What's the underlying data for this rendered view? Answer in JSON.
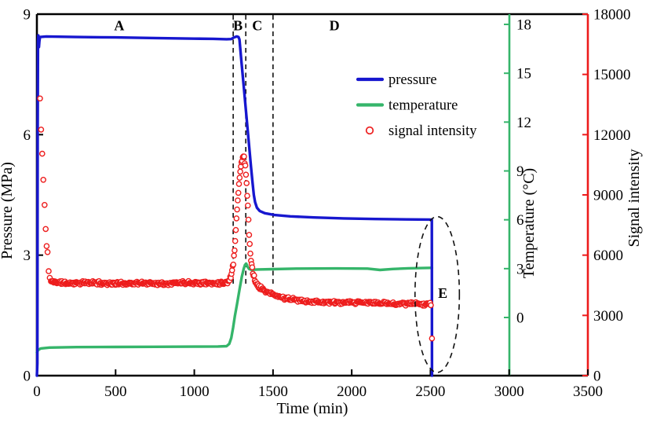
{
  "chart_data": {
    "type": "line",
    "title": "",
    "xlabel": "Time (min)",
    "x_axis": {
      "range": [
        0,
        3500
      ],
      "ticks": [
        0,
        500,
        1000,
        1500,
        2000,
        2500,
        3000,
        3500
      ]
    },
    "axes": {
      "pressure": {
        "label": "Pressure (MPa)",
        "range": [
          0,
          9
        ],
        "ticks": [
          0,
          3,
          6,
          9
        ],
        "side": "left",
        "axis_color": "#000000"
      },
      "temperature": {
        "label": "Temperature (°C)",
        "range_ticks": [
          0,
          18
        ],
        "ticks": [
          0,
          3,
          6,
          9,
          12,
          15,
          18
        ],
        "side": "inner-right-at-x-3000",
        "axis_color": "#35b56a"
      },
      "signal": {
        "label": "Signal intensity",
        "range": [
          0,
          18000
        ],
        "ticks": [
          0,
          3000,
          6000,
          9000,
          12000,
          15000,
          18000
        ],
        "side": "right",
        "axis_color": "#ed1c1c"
      }
    },
    "grid": false,
    "legend_position": "upper-middle-right-inside",
    "series": [
      {
        "name": "pressure",
        "kind": "line",
        "color": "#1717cf",
        "axis": "pressure",
        "points": [
          [
            0,
            0
          ],
          [
            3,
            0.3
          ],
          [
            5,
            6.2
          ],
          [
            7,
            8.32
          ],
          [
            9,
            8.47
          ],
          [
            11,
            8.36
          ],
          [
            13,
            8.18
          ],
          [
            16,
            8.33
          ],
          [
            20,
            8.43
          ],
          [
            60,
            8.445
          ],
          [
            250,
            8.43
          ],
          [
            500,
            8.42
          ],
          [
            750,
            8.405
          ],
          [
            1000,
            8.39
          ],
          [
            1120,
            8.385
          ],
          [
            1205,
            8.375
          ],
          [
            1235,
            8.38
          ],
          [
            1252,
            8.42
          ],
          [
            1270,
            8.445
          ],
          [
            1281,
            8.43
          ],
          [
            1287,
            8.37
          ],
          [
            1300,
            7.8
          ],
          [
            1315,
            7.15
          ],
          [
            1330,
            6.5
          ],
          [
            1345,
            5.85
          ],
          [
            1360,
            5.2
          ],
          [
            1370,
            4.8
          ],
          [
            1378,
            4.5
          ],
          [
            1386,
            4.32
          ],
          [
            1398,
            4.18
          ],
          [
            1415,
            4.1
          ],
          [
            1448,
            4.045
          ],
          [
            1510,
            4.0
          ],
          [
            1610,
            3.965
          ],
          [
            1760,
            3.938
          ],
          [
            1950,
            3.915
          ],
          [
            2150,
            3.9
          ],
          [
            2350,
            3.89
          ],
          [
            2500,
            3.885
          ],
          [
            2509,
            3.882
          ],
          [
            2510,
            0
          ]
        ]
      },
      {
        "name": "temperature",
        "kind": "line",
        "color": "#35b56a",
        "axis": "temperature",
        "points": [
          [
            0,
            -2.15
          ],
          [
            8,
            -2.0
          ],
          [
            25,
            -1.9
          ],
          [
            80,
            -1.85
          ],
          [
            250,
            -1.82
          ],
          [
            500,
            -1.81
          ],
          [
            750,
            -1.8
          ],
          [
            1000,
            -1.79
          ],
          [
            1150,
            -1.78
          ],
          [
            1205,
            -1.76
          ],
          [
            1222,
            -1.62
          ],
          [
            1235,
            -1.25
          ],
          [
            1247,
            -0.6
          ],
          [
            1258,
            0.1
          ],
          [
            1272,
            0.85
          ],
          [
            1288,
            1.75
          ],
          [
            1302,
            2.5
          ],
          [
            1314,
            3.0
          ],
          [
            1322,
            3.24
          ],
          [
            1330,
            3.3
          ],
          [
            1338,
            3.12
          ],
          [
            1348,
            2.98
          ],
          [
            1362,
            2.93
          ],
          [
            1400,
            2.95
          ],
          [
            1500,
            2.97
          ],
          [
            1650,
            3.0
          ],
          [
            1900,
            3.01
          ],
          [
            2100,
            3.0
          ],
          [
            2180,
            2.92
          ],
          [
            2260,
            2.98
          ],
          [
            2360,
            3.02
          ],
          [
            2510,
            3.05
          ]
        ]
      },
      {
        "name": "signal intensity",
        "kind": "scatter",
        "color": "#ed1c1c",
        "axis": "signal",
        "early_points": [
          [
            20,
            13800
          ],
          [
            27,
            12250
          ],
          [
            34,
            11050
          ],
          [
            41,
            9750
          ],
          [
            49,
            8500
          ],
          [
            56,
            7300
          ],
          [
            62,
            6450
          ],
          [
            68,
            6150
          ],
          [
            75,
            5200
          ],
          [
            82,
            4870
          ],
          [
            89,
            4700
          ]
        ],
        "anchors": [
          [
            95,
            4680
          ],
          [
            200,
            4600
          ],
          [
            350,
            4630
          ],
          [
            500,
            4580
          ],
          [
            650,
            4610
          ],
          [
            800,
            4590
          ],
          [
            950,
            4640
          ],
          [
            1100,
            4600
          ],
          [
            1180,
            4620
          ],
          [
            1216,
            4660
          ],
          [
            1228,
            4850
          ],
          [
            1238,
            5150
          ],
          [
            1248,
            5600
          ],
          [
            1258,
            6500
          ],
          [
            1268,
            7800
          ],
          [
            1278,
            9000
          ],
          [
            1288,
            9900
          ],
          [
            1298,
            10500
          ],
          [
            1308,
            10850
          ],
          [
            1316,
            10880
          ],
          [
            1324,
            10450
          ],
          [
            1332,
            9550
          ],
          [
            1340,
            8400
          ],
          [
            1348,
            7100
          ],
          [
            1356,
            6100
          ],
          [
            1366,
            5400
          ],
          [
            1378,
            4950
          ],
          [
            1392,
            4600
          ],
          [
            1410,
            4430
          ],
          [
            1430,
            4300
          ],
          [
            1460,
            4180
          ],
          [
            1500,
            4020
          ],
          [
            1560,
            3880
          ],
          [
            1650,
            3760
          ],
          [
            1780,
            3670
          ],
          [
            1950,
            3630
          ],
          [
            2100,
            3640
          ],
          [
            2250,
            3590
          ],
          [
            2400,
            3580
          ],
          [
            2506,
            3570
          ]
        ],
        "segments": [
          {
            "t0": 95,
            "t1": 1216,
            "step": 4,
            "noise": 100
          },
          {
            "t0": 1220,
            "t1": 1444,
            "step": 4,
            "noise": 140
          },
          {
            "t0": 1448,
            "t1": 2506,
            "step": 5,
            "noise": 95
          }
        ],
        "end_point": [
          2510,
          1850
        ],
        "noise_seed": 11
      }
    ],
    "region_boundaries_min": [
      1247,
      1327,
      1500
    ],
    "region_labels": [
      {
        "text": "A",
        "t": 523,
        "p": 8.72
      },
      {
        "text": "B",
        "t": 1277,
        "p": 8.72
      },
      {
        "text": "C",
        "t": 1400,
        "p": 8.72
      },
      {
        "text": "D",
        "t": 1890,
        "p": 8.72
      },
      {
        "text": "E",
        "t": 2578,
        "p": 2.05
      }
    ],
    "ellipse_annotation": {
      "t": 2543,
      "p": 2.02,
      "t_half": 141,
      "p_half": 1.94
    }
  },
  "legend": {
    "items": [
      {
        "label": "pressure",
        "marker": "line",
        "color": "#1717cf"
      },
      {
        "label": "temperature",
        "marker": "line",
        "color": "#35b56a"
      },
      {
        "label": "signal intensity",
        "marker": "circle",
        "color": "#ed1c1c"
      }
    ]
  }
}
